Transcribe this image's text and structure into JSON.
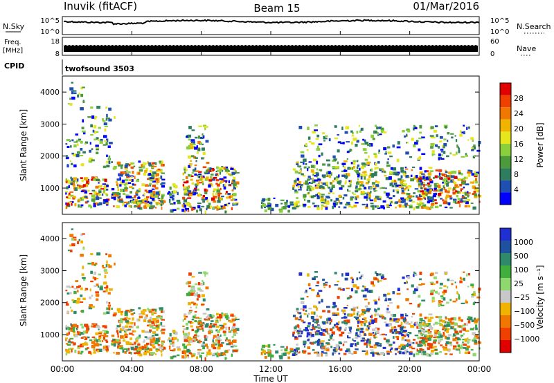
{
  "header": {
    "station": "Inuvik (fitACF)",
    "beam": "Beam 15",
    "date": "01/Mar/2016"
  },
  "strip": {
    "nsky_label": "N.Sky",
    "nsky_ticks": [
      "10^5",
      "10^0"
    ],
    "nsearch_label": "N.Search",
    "nsearch_ticks": [
      "10^5",
      "10^0"
    ],
    "freq_label": "Freq.",
    "freq_unit": "[MHz]",
    "freq_ticks": [
      "18",
      "8"
    ],
    "nave_label": "Nave",
    "nave_ticks": [
      "60",
      "0"
    ],
    "cpid_label": "CPID",
    "cpid_value": "twofsound 3503"
  },
  "colors": {
    "power_scale": [
      "#0000ff",
      "#1f4fb0",
      "#2e7d5c",
      "#4c9a3c",
      "#8ccf3c",
      "#e6e61e",
      "#f0b400",
      "#f07800",
      "#f04000",
      "#e00000"
    ],
    "velocity_scale": [
      "#1f2fd0",
      "#2050a0",
      "#2e8a6a",
      "#3fae3f",
      "#8fd870",
      "#c8c8c8",
      "#f0b400",
      "#f07800",
      "#f04000",
      "#e00000"
    ]
  },
  "chart_data": [
    {
      "type": "heatmap",
      "name": "power",
      "ylabel": "Slant Range [km]",
      "y_ticks": [
        "1000",
        "2000",
        "3000",
        "4000"
      ],
      "x_ticks": [
        "00:00",
        "04:00",
        "08:00",
        "12:00",
        "16:00",
        "20:00",
        "00:00"
      ],
      "colorbar_label": "Power [dB]",
      "colorbar_ticks": [
        "4",
        "8",
        "12",
        "16",
        "20",
        "24",
        "28"
      ],
      "ylim": [
        180,
        4500
      ]
    },
    {
      "type": "heatmap",
      "name": "velocity",
      "ylabel": "Slant Range [km]",
      "y_ticks": [
        "1000",
        "2000",
        "3000",
        "4000"
      ],
      "x_ticks": [
        "00:00",
        "04:00",
        "08:00",
        "12:00",
        "16:00",
        "20:00",
        "00:00"
      ],
      "xlabel": "Time UT",
      "colorbar_label": "Velocity [m s⁻¹]",
      "colorbar_ticks": [
        "1000",
        "500",
        "100",
        "25",
        "−25",
        "−100",
        "−500",
        "−1000"
      ],
      "ylim": [
        180,
        4500
      ]
    }
  ]
}
